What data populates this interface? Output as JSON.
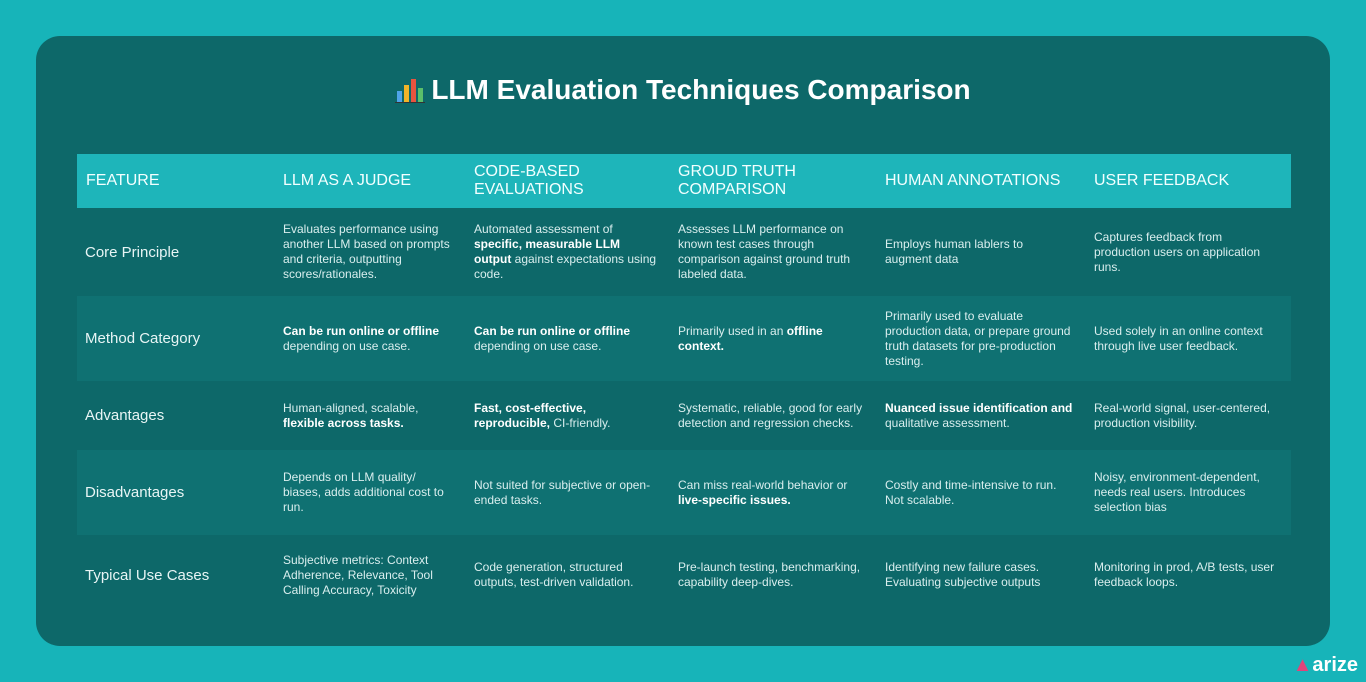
{
  "title": "LLM Evaluation Techniques Comparison",
  "table": {
    "headers": [
      "FEATURE",
      "LLM AS A JUDGE",
      "CODE-BASED EVALUATIONS",
      "GROUD TRUTH COMPARISON",
      "HUMAN ANNOTATIONS",
      "USER FEEDBACK"
    ],
    "rows": [
      {
        "label": "Core Principle",
        "cells": [
          [
            "Evaluates performance using another LLM based on prompts and criteria, outputting scores/rationales."
          ],
          [
            "Automated assessment of ",
            {
              "bold": "specific, measurable LLM output"
            },
            " against expectations using code."
          ],
          [
            "Assesses LLM performance on known test cases through comparison against ground truth labeled data."
          ],
          [
            "Employs human lablers to augment data"
          ],
          [
            "Captures feedback from production users on application runs."
          ]
        ]
      },
      {
        "label": "Method Category",
        "cells": [
          [
            {
              "bold": "Can be run online or offline"
            },
            " depending on use case."
          ],
          [
            {
              "bold": "Can be run online or offline"
            },
            " depending on use case."
          ],
          [
            "Primarily used in an ",
            {
              "bold": "offline context."
            }
          ],
          [
            "Primarily used to evaluate production data, or prepare ground truth datasets for pre-production testing."
          ],
          [
            "Used solely in an online context through live user feedback."
          ]
        ]
      },
      {
        "label": "Advantages",
        "cells": [
          [
            "Human-aligned, scalable, ",
            {
              "bold": "flexible across tasks."
            }
          ],
          [
            {
              "bold": "Fast, cost-effective, reproducible,"
            },
            " CI-friendly."
          ],
          [
            "Systematic, reliable, good for early detection and regression checks."
          ],
          [
            {
              "bold": "Nuanced issue identification and"
            },
            " qualitative assessment."
          ],
          [
            "Real-world signal, user-centered, production visibility."
          ]
        ]
      },
      {
        "label": "Disadvantages",
        "cells": [
          [
            "Depends on LLM quality/ biases, adds additional cost to run."
          ],
          [
            "Not suited for subjective or open-ended tasks."
          ],
          [
            "Can miss real-world behavior or ",
            {
              "bold": "live-specific issues."
            }
          ],
          [
            "Costly and time-intensive to run. Not scalable."
          ],
          [
            "Noisy, environment-dependent, needs real users. Introduces selection bias"
          ]
        ]
      },
      {
        "label": "Typical Use Cases",
        "cells": [
          [
            "Subjective metrics: Context Adherence, Relevance, Tool Calling Accuracy, Toxicity"
          ],
          [
            "Code generation, structured outputs, test-driven validation."
          ],
          [
            "Pre-launch testing, benchmarking, capability deep-dives."
          ],
          [
            "Identifying new failure cases. Evaluating subjective outputs"
          ],
          [
            "Monitoring in prod, A/B tests, user feedback loops."
          ]
        ]
      }
    ]
  },
  "logo": "arize"
}
